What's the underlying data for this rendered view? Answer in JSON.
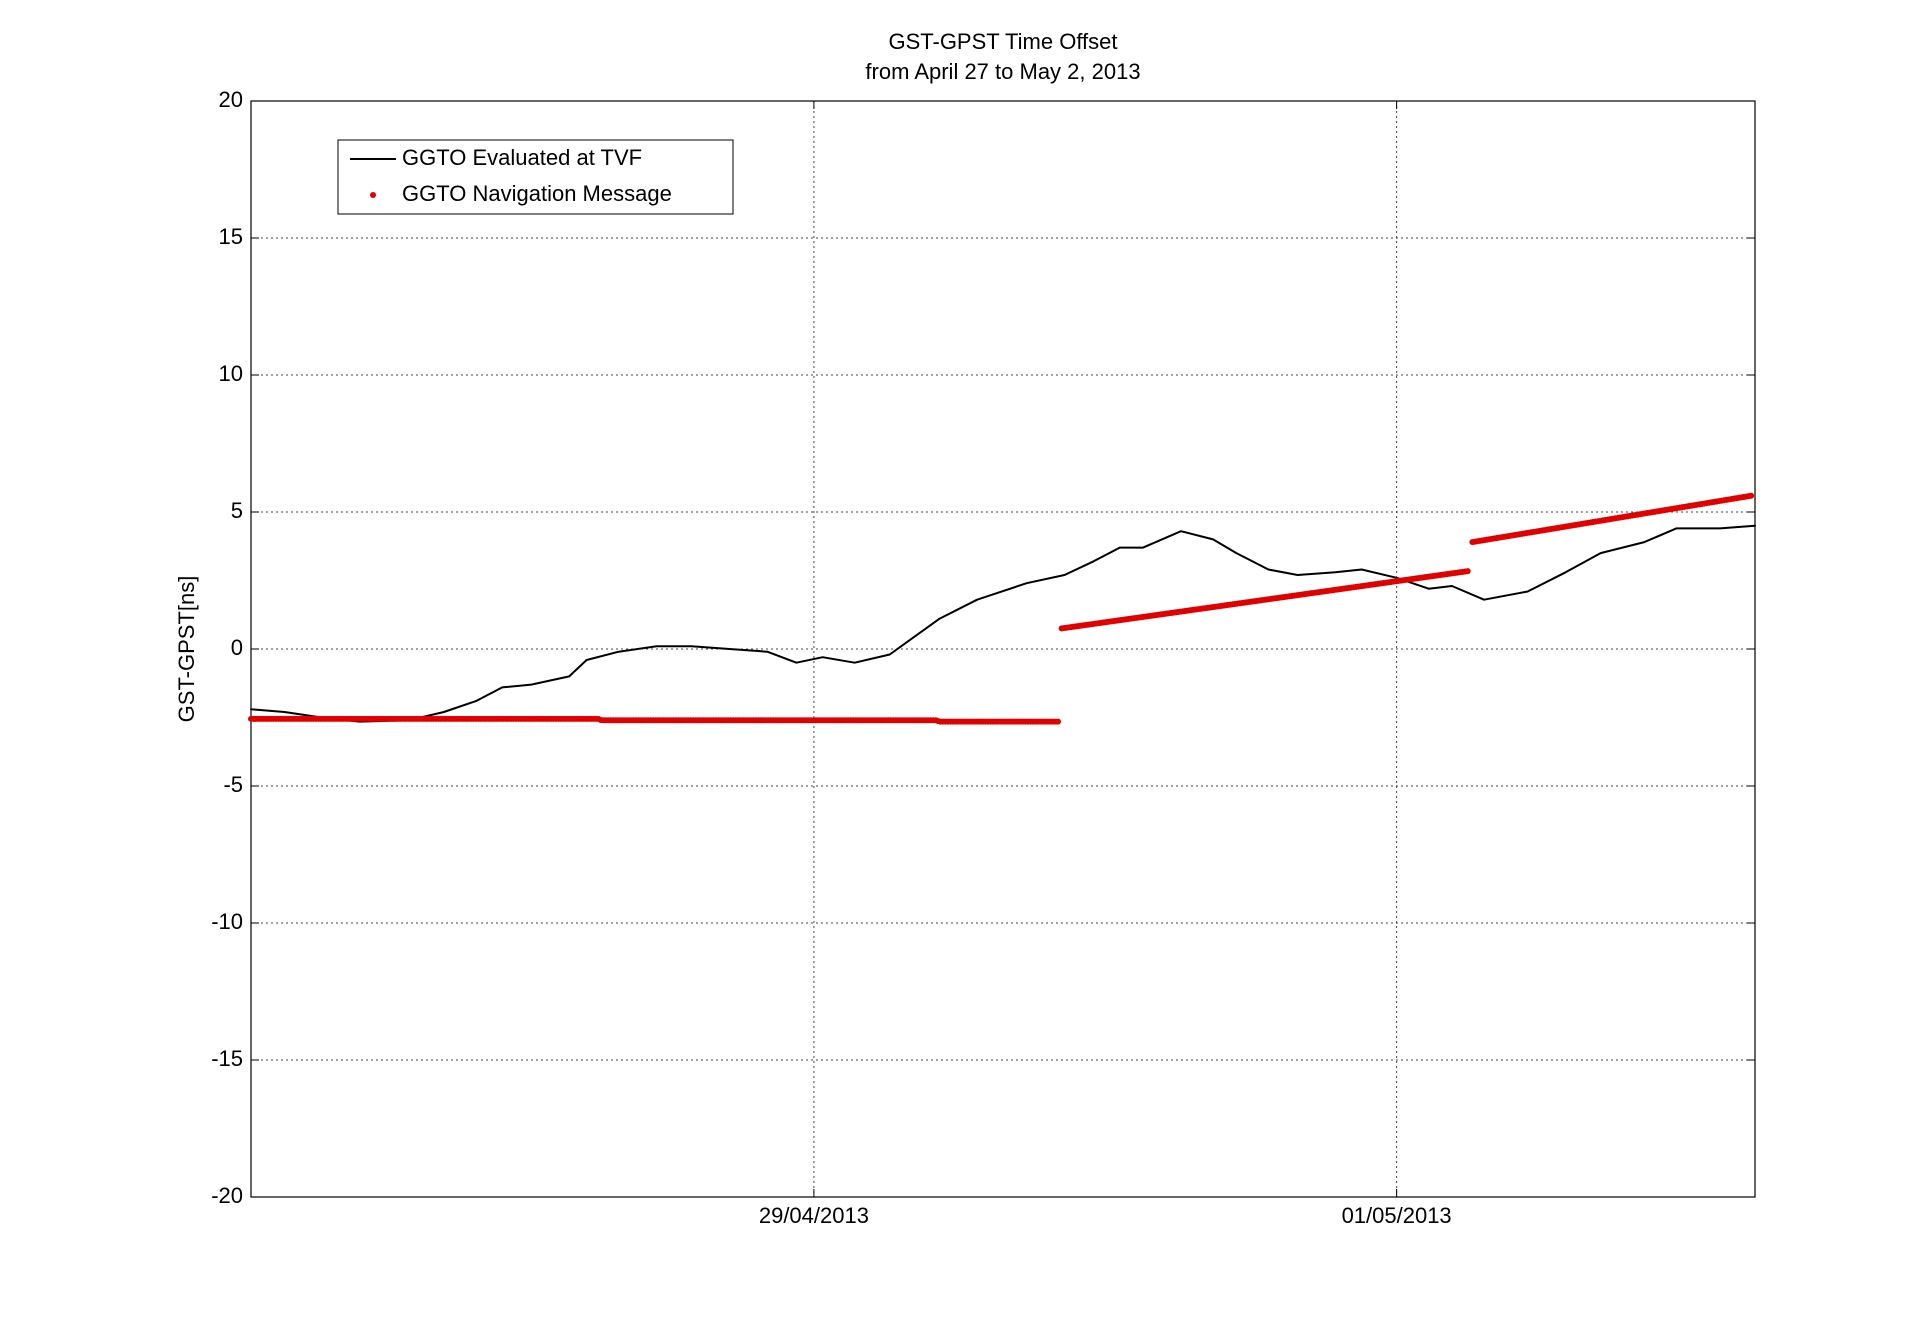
{
  "chart_data": {
    "type": "line",
    "title": "GST-GPST Time Offset",
    "subtitle": "from April 27 to May 2, 2013",
    "y_label": "GST-GPST[ns]",
    "xlim": [
      0.068,
      5.23
    ],
    "xticks": [
      {
        "value": 2,
        "label": "29/04/2013"
      },
      {
        "value": 4,
        "label": "01/05/2013"
      }
    ],
    "ylim": [
      -20,
      20
    ],
    "yticks": [
      -20,
      -15,
      -10,
      -5,
      0,
      5,
      10,
      15,
      20
    ],
    "grid": true,
    "legend": "top-left",
    "series": [
      {
        "name": "GGTO Evaluated at TVF",
        "color": "#000000",
        "style": "line",
        "x": [
          0.068,
          0.183,
          0.31,
          0.44,
          0.61,
          0.73,
          0.84,
          0.93,
          1.03,
          1.16,
          1.22,
          1.33,
          1.46,
          1.58,
          1.71,
          1.84,
          1.94,
          2.03,
          2.14,
          2.26,
          2.43,
          2.56,
          2.73,
          2.86,
          2.96,
          3.05,
          3.13,
          3.26,
          3.37,
          3.45,
          3.56,
          3.66,
          3.79,
          3.88,
          4.0,
          4.11,
          4.19,
          4.3,
          4.45,
          4.58,
          4.7,
          4.85,
          4.96,
          5.11,
          5.23
        ],
        "values": [
          -2.2,
          -2.3,
          -2.5,
          -2.65,
          -2.6,
          -2.3,
          -1.9,
          -1.4,
          -1.3,
          -1.0,
          -0.4,
          -0.1,
          0.1,
          0.1,
          0.0,
          -0.1,
          -0.5,
          -0.3,
          -0.5,
          -0.2,
          1.1,
          1.8,
          2.4,
          2.7,
          3.2,
          3.7,
          3.7,
          4.3,
          4.0,
          3.5,
          2.9,
          2.7,
          2.8,
          2.9,
          2.6,
          2.2,
          2.3,
          1.8,
          2.1,
          2.8,
          3.5,
          3.9,
          4.4,
          4.4,
          4.5
        ]
      },
      {
        "name": "GGTO Navigation Message",
        "color": "#e00000",
        "style": "dots",
        "x": [
          0.068,
          1.26,
          1.27,
          2.42,
          2.43,
          2.84,
          null,
          2.85,
          4.25,
          null,
          4.26,
          5.22
        ],
        "values": [
          -2.55,
          -2.55,
          -2.6,
          -2.6,
          -2.65,
          -2.65,
          null,
          0.75,
          2.85,
          null,
          3.9,
          5.6
        ]
      }
    ]
  }
}
